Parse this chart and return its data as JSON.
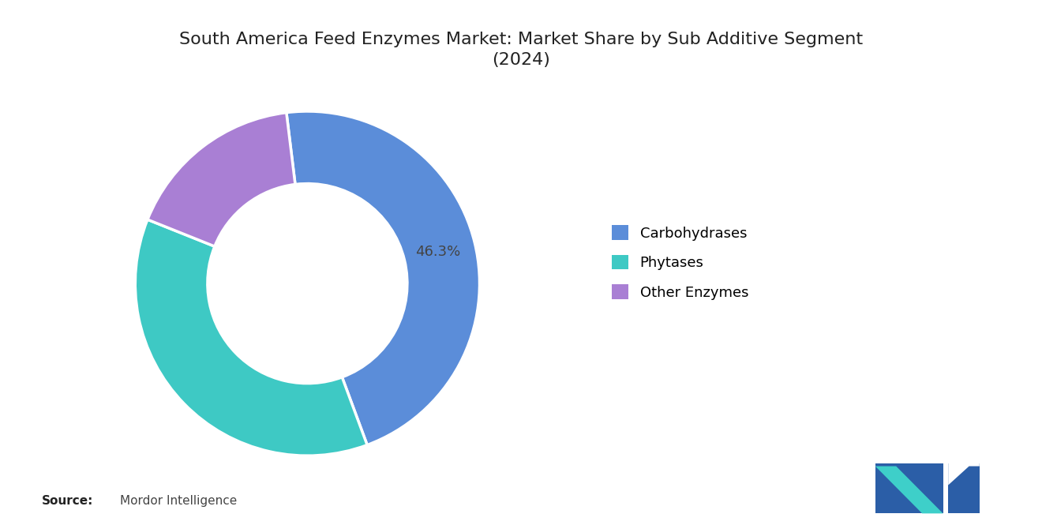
{
  "title": "South America Feed Enzymes Market: Market Share by Sub Additive Segment\n(2024)",
  "segments": [
    "Carbohydrases",
    "Phytases",
    "Other Enzymes"
  ],
  "values": [
    46.3,
    36.7,
    17.0
  ],
  "colors": [
    "#5B8DD9",
    "#3EC9C4",
    "#A97FD4"
  ],
  "label_text": "46.3%",
  "source_bold": "Source:",
  "source_text": "Mordor Intelligence",
  "bg_color": "#FFFFFF",
  "title_fontsize": 16,
  "legend_fontsize": 13,
  "startangle": 97,
  "donut_width": 0.42
}
